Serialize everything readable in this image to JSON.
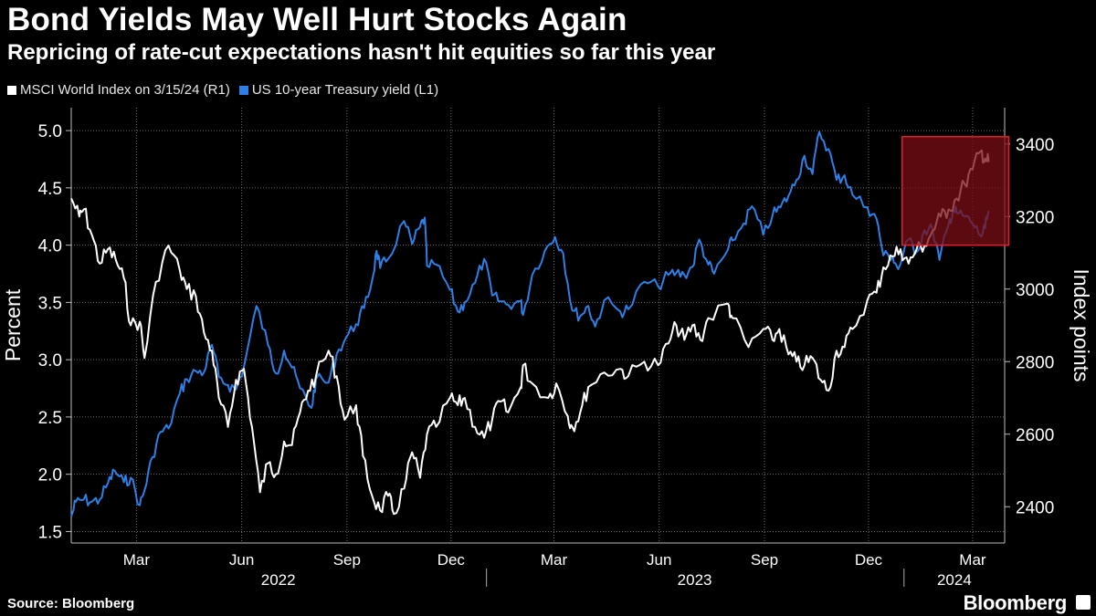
{
  "header": {
    "title": "Bond Yields May Well Hurt Stocks Again",
    "subtitle": "Repricing of rate-cut expectations hasn't hit equities so far this year"
  },
  "footer": {
    "source": "Source: Bloomberg",
    "brand": "Bloomberg"
  },
  "colors": {
    "background": "#000000",
    "msci": "#ffffff",
    "yield": "#2f7fe6",
    "highlight_fill": "#7a0d16",
    "highlight_stroke": "#e0202e",
    "grid": "#6e6e6e"
  },
  "chart_data": {
    "type": "line",
    "title": "Bond Yields May Well Hurt Stocks Again",
    "subtitle": "Repricing of rate-cut expectations hasn't hit equities so far this year",
    "left_axis": {
      "label": "Percent",
      "range": [
        1.4,
        5.2
      ],
      "ticks": [
        "1.5",
        "2.0",
        "2.5",
        "3.0",
        "3.5",
        "4.0",
        "4.5",
        "5.0"
      ]
    },
    "right_axis": {
      "label": "Index points",
      "range": [
        2300,
        3500
      ],
      "ticks": [
        "2400",
        "2600",
        "2800",
        "3000",
        "3200",
        "3400"
      ]
    },
    "x_axis": {
      "start": "2022-01-03",
      "end": "2024-03-29",
      "month_ticks": [
        {
          "label": "Mar",
          "date": "2022-03-01"
        },
        {
          "label": "Jun",
          "date": "2022-06-01"
        },
        {
          "label": "Sep",
          "date": "2022-09-01"
        },
        {
          "label": "Dec",
          "date": "2022-12-01"
        },
        {
          "label": "Mar",
          "date": "2023-03-01"
        },
        {
          "label": "Jun",
          "date": "2023-06-01"
        },
        {
          "label": "Sep",
          "date": "2023-09-01"
        },
        {
          "label": "Dec",
          "date": "2023-12-01"
        },
        {
          "label": "Mar",
          "date": "2024-03-01"
        }
      ],
      "years": [
        {
          "label": "2022",
          "from": "2022-01-03",
          "to": "2022-12-31"
        },
        {
          "label": "2023",
          "from": "2023-01-01",
          "to": "2023-12-31"
        },
        {
          "label": "2024",
          "from": "2024-01-01",
          "to": "2024-03-29"
        }
      ]
    },
    "legend": [
      {
        "name": "MSCI World Index on 3/15/24 (R1)",
        "color": "#ffffff"
      },
      {
        "name": "US 10-year Treasury yield (L1)",
        "color": "#2f7fe6"
      }
    ],
    "highlight_range": {
      "from": "2024-01-01",
      "to": "2024-03-15",
      "yield_range": [
        4.0,
        4.4
      ],
      "index_range": [
        3120,
        3420
      ]
    },
    "series": [
      {
        "name": "MSCI World Index on 3/15/24",
        "axis": "right",
        "points": [
          [
            "2022-01-03",
            3250
          ],
          [
            "2022-01-10",
            3200
          ],
          [
            "2022-01-14",
            3220
          ],
          [
            "2022-01-21",
            3150
          ],
          [
            "2022-01-28",
            3070
          ],
          [
            "2022-02-04",
            3110
          ],
          [
            "2022-02-11",
            3080
          ],
          [
            "2022-02-18",
            3030
          ],
          [
            "2022-02-24",
            2900
          ],
          [
            "2022-03-04",
            2910
          ],
          [
            "2022-03-08",
            2810
          ],
          [
            "2022-03-18",
            3020
          ],
          [
            "2022-03-29",
            3120
          ],
          [
            "2022-04-08",
            3050
          ],
          [
            "2022-04-14",
            3000
          ],
          [
            "2022-04-22",
            2980
          ],
          [
            "2022-04-29",
            2880
          ],
          [
            "2022-05-06",
            2830
          ],
          [
            "2022-05-12",
            2700
          ],
          [
            "2022-05-20",
            2620
          ],
          [
            "2022-05-27",
            2750
          ],
          [
            "2022-06-03",
            2780
          ],
          [
            "2022-06-10",
            2620
          ],
          [
            "2022-06-17",
            2440
          ],
          [
            "2022-06-24",
            2520
          ],
          [
            "2022-07-01",
            2490
          ],
          [
            "2022-07-08",
            2580
          ],
          [
            "2022-07-15",
            2570
          ],
          [
            "2022-07-22",
            2660
          ],
          [
            "2022-07-29",
            2720
          ],
          [
            "2022-08-05",
            2760
          ],
          [
            "2022-08-16",
            2830
          ],
          [
            "2022-08-23",
            2760
          ],
          [
            "2022-08-30",
            2640
          ],
          [
            "2022-09-09",
            2680
          ],
          [
            "2022-09-15",
            2540
          ],
          [
            "2022-09-23",
            2430
          ],
          [
            "2022-09-30",
            2390
          ],
          [
            "2022-10-07",
            2430
          ],
          [
            "2022-10-12",
            2380
          ],
          [
            "2022-10-21",
            2450
          ],
          [
            "2022-10-28",
            2550
          ],
          [
            "2022-11-04",
            2480
          ],
          [
            "2022-11-10",
            2600
          ],
          [
            "2022-11-18",
            2620
          ],
          [
            "2022-11-30",
            2700
          ],
          [
            "2022-12-07",
            2680
          ],
          [
            "2022-12-13",
            2700
          ],
          [
            "2022-12-22",
            2620
          ],
          [
            "2022-12-30",
            2590
          ],
          [
            "2023-01-06",
            2640
          ],
          [
            "2023-01-13",
            2690
          ],
          [
            "2023-01-20",
            2660
          ],
          [
            "2023-01-31",
            2730
          ],
          [
            "2023-02-02",
            2790
          ],
          [
            "2023-02-10",
            2740
          ],
          [
            "2023-02-24",
            2700
          ],
          [
            "2023-03-03",
            2740
          ],
          [
            "2023-03-13",
            2650
          ],
          [
            "2023-03-17",
            2620
          ],
          [
            "2023-03-24",
            2660
          ],
          [
            "2023-03-31",
            2730
          ],
          [
            "2023-04-14",
            2770
          ],
          [
            "2023-04-28",
            2780
          ],
          [
            "2023-05-05",
            2760
          ],
          [
            "2023-05-19",
            2800
          ],
          [
            "2023-05-31",
            2790
          ],
          [
            "2023-06-09",
            2850
          ],
          [
            "2023-06-16",
            2900
          ],
          [
            "2023-06-23",
            2860
          ],
          [
            "2023-06-30",
            2900
          ],
          [
            "2023-07-07",
            2860
          ],
          [
            "2023-07-14",
            2920
          ],
          [
            "2023-07-31",
            2960
          ],
          [
            "2023-08-04",
            2920
          ],
          [
            "2023-08-18",
            2840
          ],
          [
            "2023-08-31",
            2890
          ],
          [
            "2023-09-08",
            2860
          ],
          [
            "2023-09-14",
            2890
          ],
          [
            "2023-09-22",
            2820
          ],
          [
            "2023-09-29",
            2800
          ],
          [
            "2023-10-06",
            2790
          ],
          [
            "2023-10-13",
            2810
          ],
          [
            "2023-10-20",
            2750
          ],
          [
            "2023-10-27",
            2720
          ],
          [
            "2023-11-03",
            2830
          ],
          [
            "2023-11-10",
            2840
          ],
          [
            "2023-11-17",
            2890
          ],
          [
            "2023-11-30",
            2970
          ],
          [
            "2023-12-08",
            2990
          ],
          [
            "2023-12-14",
            3060
          ],
          [
            "2023-12-22",
            3090
          ],
          [
            "2023-12-29",
            3110
          ],
          [
            "2024-01-05",
            3070
          ],
          [
            "2024-01-12",
            3110
          ],
          [
            "2024-01-19",
            3120
          ],
          [
            "2024-01-26",
            3160
          ],
          [
            "2024-02-02",
            3200
          ],
          [
            "2024-02-09",
            3220
          ],
          [
            "2024-02-16",
            3250
          ],
          [
            "2024-02-23",
            3290
          ],
          [
            "2024-03-01",
            3330
          ],
          [
            "2024-03-08",
            3380
          ],
          [
            "2024-03-12",
            3360
          ],
          [
            "2024-03-15",
            3350
          ]
        ]
      },
      {
        "name": "US 10-year Treasury yield",
        "axis": "left",
        "points": [
          [
            "2022-01-03",
            1.63
          ],
          [
            "2022-01-07",
            1.76
          ],
          [
            "2022-01-14",
            1.78
          ],
          [
            "2022-01-21",
            1.76
          ],
          [
            "2022-01-28",
            1.78
          ],
          [
            "2022-02-04",
            1.92
          ],
          [
            "2022-02-10",
            2.03
          ],
          [
            "2022-02-18",
            1.93
          ],
          [
            "2022-02-24",
            1.97
          ],
          [
            "2022-03-04",
            1.73
          ],
          [
            "2022-03-08",
            1.86
          ],
          [
            "2022-03-15",
            2.15
          ],
          [
            "2022-03-22",
            2.37
          ],
          [
            "2022-03-29",
            2.4
          ],
          [
            "2022-04-08",
            2.71
          ],
          [
            "2022-04-14",
            2.83
          ],
          [
            "2022-04-22",
            2.9
          ],
          [
            "2022-04-29",
            2.89
          ],
          [
            "2022-05-06",
            3.13
          ],
          [
            "2022-05-12",
            2.85
          ],
          [
            "2022-05-20",
            2.78
          ],
          [
            "2022-05-27",
            2.74
          ],
          [
            "2022-06-03",
            2.94
          ],
          [
            "2022-06-14",
            3.47
          ],
          [
            "2022-06-24",
            3.13
          ],
          [
            "2022-07-01",
            2.88
          ],
          [
            "2022-07-08",
            3.08
          ],
          [
            "2022-07-15",
            2.93
          ],
          [
            "2022-07-22",
            2.75
          ],
          [
            "2022-08-01",
            2.58
          ],
          [
            "2022-08-05",
            2.83
          ],
          [
            "2022-08-16",
            2.8
          ],
          [
            "2022-08-23",
            3.05
          ],
          [
            "2022-08-31",
            3.19
          ],
          [
            "2022-09-09",
            3.31
          ],
          [
            "2022-09-16",
            3.45
          ],
          [
            "2022-09-23",
            3.69
          ],
          [
            "2022-09-27",
            3.95
          ],
          [
            "2022-09-30",
            3.8
          ],
          [
            "2022-10-07",
            3.88
          ],
          [
            "2022-10-21",
            4.21
          ],
          [
            "2022-10-28",
            4.01
          ],
          [
            "2022-11-04",
            4.16
          ],
          [
            "2022-11-08",
            4.24
          ],
          [
            "2022-11-10",
            3.82
          ],
          [
            "2022-11-18",
            3.83
          ],
          [
            "2022-11-30",
            3.61
          ],
          [
            "2022-12-07",
            3.42
          ],
          [
            "2022-12-13",
            3.5
          ],
          [
            "2022-12-22",
            3.67
          ],
          [
            "2022-12-30",
            3.88
          ],
          [
            "2023-01-06",
            3.56
          ],
          [
            "2023-01-13",
            3.51
          ],
          [
            "2023-01-20",
            3.48
          ],
          [
            "2023-01-31",
            3.51
          ],
          [
            "2023-02-02",
            3.39
          ],
          [
            "2023-02-10",
            3.74
          ],
          [
            "2023-02-21",
            3.95
          ],
          [
            "2023-03-02",
            4.07
          ],
          [
            "2023-03-09",
            3.93
          ],
          [
            "2023-03-17",
            3.43
          ],
          [
            "2023-03-24",
            3.38
          ],
          [
            "2023-03-31",
            3.47
          ],
          [
            "2023-04-06",
            3.29
          ],
          [
            "2023-04-14",
            3.52
          ],
          [
            "2023-04-28",
            3.42
          ],
          [
            "2023-05-05",
            3.44
          ],
          [
            "2023-05-19",
            3.68
          ],
          [
            "2023-05-31",
            3.64
          ],
          [
            "2023-06-09",
            3.74
          ],
          [
            "2023-06-16",
            3.76
          ],
          [
            "2023-06-23",
            3.74
          ],
          [
            "2023-06-30",
            3.81
          ],
          [
            "2023-07-06",
            4.05
          ],
          [
            "2023-07-14",
            3.83
          ],
          [
            "2023-07-19",
            3.75
          ],
          [
            "2023-07-31",
            3.96
          ],
          [
            "2023-08-04",
            4.04
          ],
          [
            "2023-08-14",
            4.19
          ],
          [
            "2023-08-21",
            4.34
          ],
          [
            "2023-08-31",
            4.09
          ],
          [
            "2023-09-08",
            4.26
          ],
          [
            "2023-09-15",
            4.33
          ],
          [
            "2023-09-22",
            4.43
          ],
          [
            "2023-09-29",
            4.57
          ],
          [
            "2023-10-06",
            4.78
          ],
          [
            "2023-10-13",
            4.62
          ],
          [
            "2023-10-19",
            4.99
          ],
          [
            "2023-10-27",
            4.84
          ],
          [
            "2023-11-03",
            4.57
          ],
          [
            "2023-11-10",
            4.61
          ],
          [
            "2023-11-17",
            4.44
          ],
          [
            "2023-11-30",
            4.33
          ],
          [
            "2023-12-08",
            4.23
          ],
          [
            "2023-12-14",
            3.91
          ],
          [
            "2023-12-22",
            3.9
          ],
          [
            "2023-12-27",
            3.79
          ],
          [
            "2024-01-05",
            4.05
          ],
          [
            "2024-01-12",
            3.94
          ],
          [
            "2024-01-19",
            4.13
          ],
          [
            "2024-01-26",
            4.14
          ],
          [
            "2024-02-01",
            3.87
          ],
          [
            "2024-02-09",
            4.18
          ],
          [
            "2024-02-13",
            4.31
          ],
          [
            "2024-02-16",
            4.28
          ],
          [
            "2024-02-23",
            4.25
          ],
          [
            "2024-03-01",
            4.19
          ],
          [
            "2024-03-08",
            4.08
          ],
          [
            "2024-03-12",
            4.15
          ],
          [
            "2024-03-15",
            4.3
          ]
        ]
      }
    ]
  }
}
